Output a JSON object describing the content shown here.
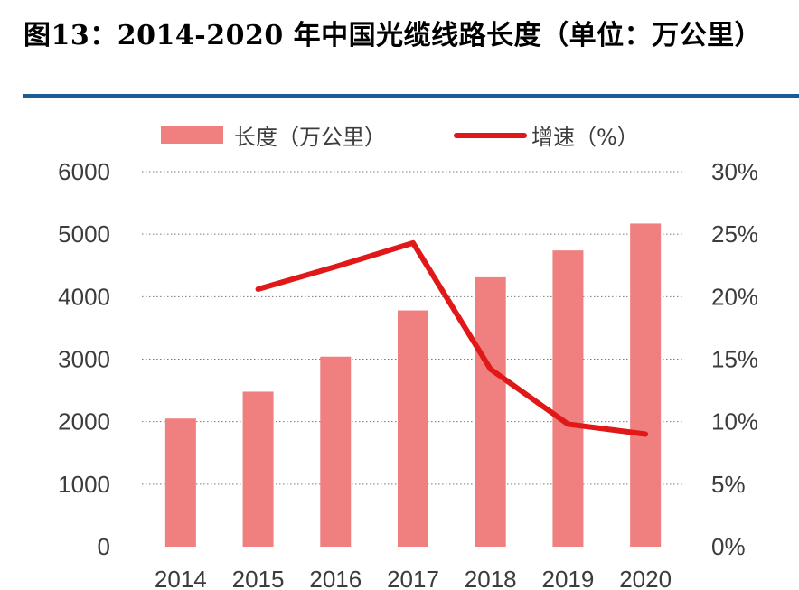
{
  "colors": {
    "bar": "#f07f7f",
    "line": "#e01818",
    "rule": "#1d5a9a",
    "axis_text": "#3c3c3c"
  },
  "chart_data": {
    "type": "bar",
    "title": "图13：2014-2020 年中国光缆线路长度（单位：万公里）",
    "categories": [
      "2014",
      "2015",
      "2016",
      "2017",
      "2018",
      "2019",
      "2020"
    ],
    "series": [
      {
        "name": "长度（万公里）",
        "type": "bar",
        "axis": "left",
        "values": [
          2050,
          2480,
          3040,
          3780,
          4310,
          4740,
          5170
        ]
      },
      {
        "name": "增速（%）",
        "type": "line",
        "axis": "right",
        "values": [
          null,
          20.6,
          22.4,
          24.3,
          14.2,
          9.8,
          9.0
        ]
      }
    ],
    "y_left": {
      "min": 0,
      "max": 6000,
      "ticks": [
        0,
        1000,
        2000,
        3000,
        4000,
        5000,
        6000
      ]
    },
    "y_right": {
      "min": 0,
      "max": 30,
      "ticks": [
        "0%",
        "5%",
        "10%",
        "15%",
        "20%",
        "25%",
        "30%"
      ]
    },
    "grid": "dotted horizontal",
    "legend": "top"
  }
}
